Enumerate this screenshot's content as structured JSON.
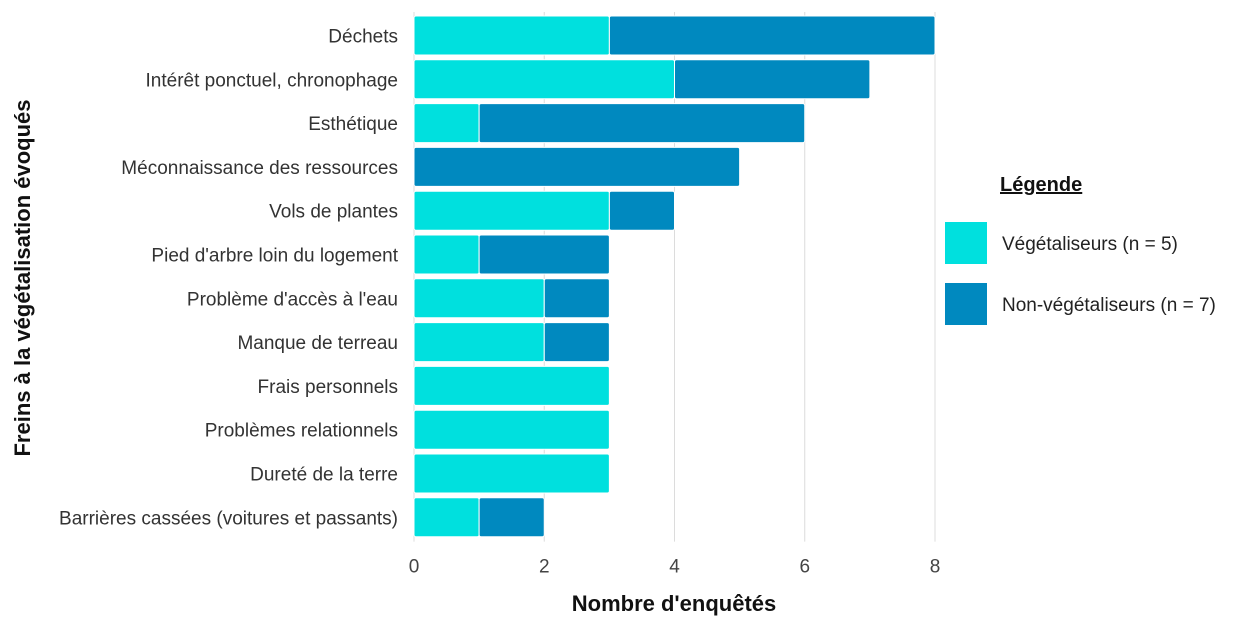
{
  "chart_data": {
    "type": "bar",
    "orientation": "horizontal",
    "stacked": true,
    "categories": [
      "Déchets",
      "Intérêt ponctuel, chronophage",
      "Esthétique",
      "Méconnaissance des ressources",
      "Vols de plantes",
      "Pied d'arbre loin du logement",
      "Problème d'accès à l'eau",
      "Manque de terreau",
      "Frais personnels",
      "Problèmes relationnels",
      "Dureté de la terre",
      "Barrières cassées (voitures et passants)"
    ],
    "series": [
      {
        "name": "Végétaliseurs  (n = 5)",
        "color": "#00e0de",
        "values": [
          3,
          4,
          1,
          0,
          3,
          1,
          2,
          2,
          3,
          3,
          3,
          1
        ]
      },
      {
        "name": "Non-végétaliseurs (n = 7)",
        "color": "#0089bf",
        "values": [
          5,
          3,
          5,
          5,
          1,
          2,
          1,
          1,
          0,
          0,
          0,
          1
        ]
      }
    ],
    "xlabel": "Nombre d'enquêtés",
    "ylabel": "Freins à la végétalisation évoqués",
    "xlim": [
      0,
      8
    ],
    "xticks": [
      "0",
      "2",
      "4",
      "6",
      "8"
    ],
    "grid": true,
    "legend": {
      "title": "Légende",
      "position": "right"
    }
  }
}
